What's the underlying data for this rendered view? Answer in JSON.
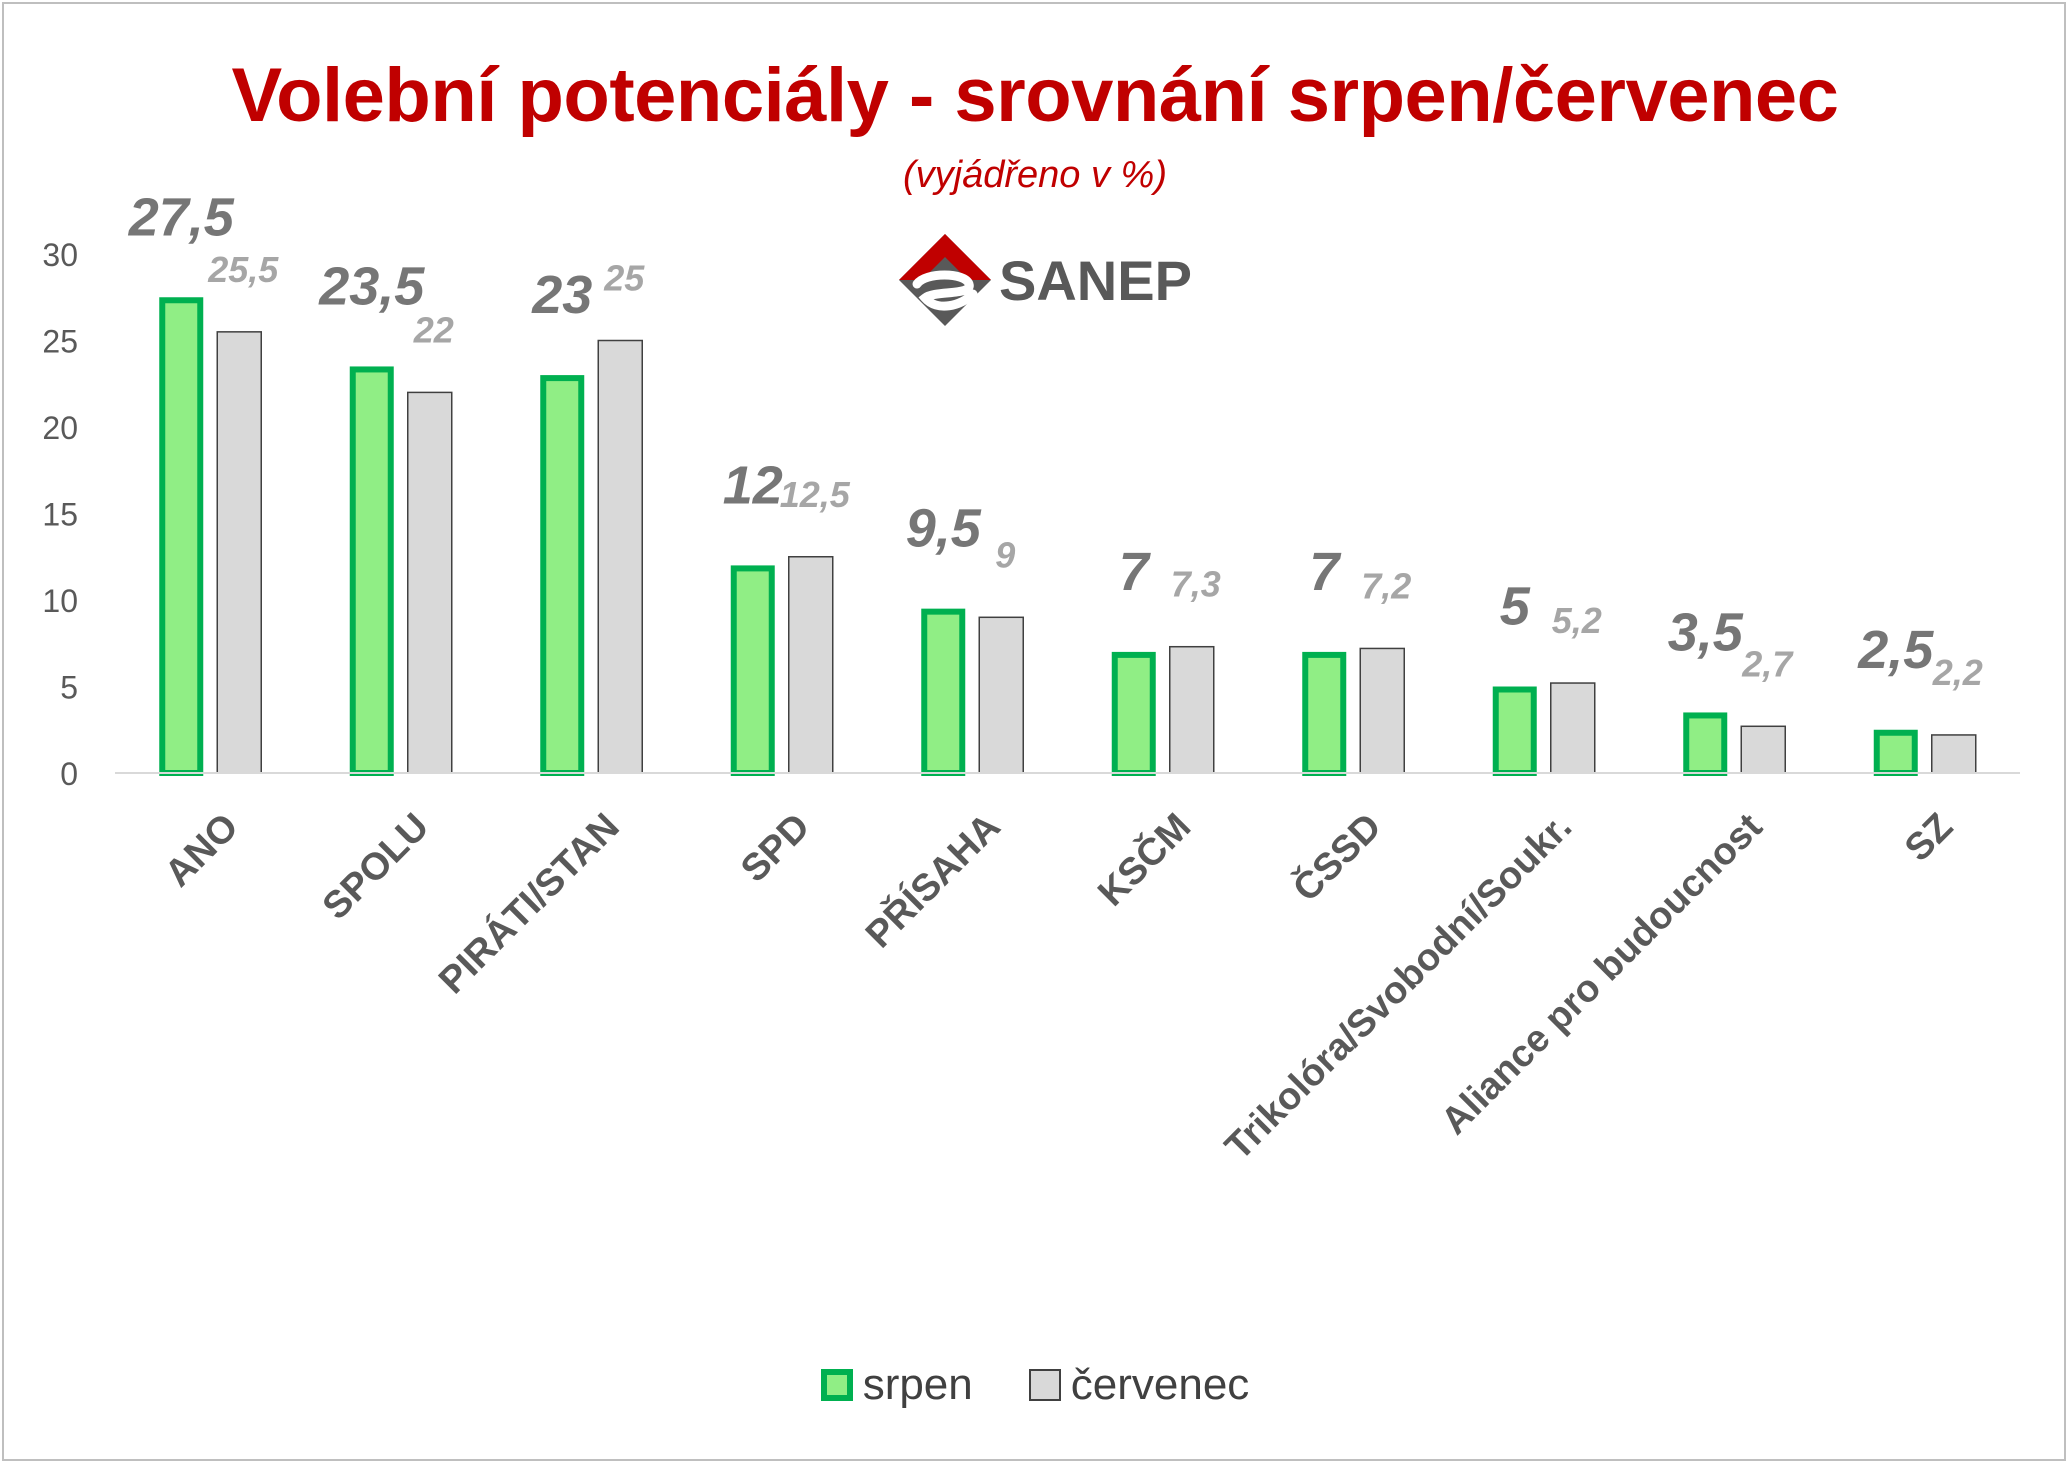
{
  "chart_data": {
    "type": "bar",
    "title": "Volební potenciály - srovnání srpen/červenec",
    "subtitle": "(vyjádřeno v %)",
    "categories": [
      "ANO",
      "SPOLU",
      "PIRÁTI/STAN",
      "SPD",
      "PŘÍSAHA",
      "KSČM",
      "ČSSD",
      "Trikolóra/Svobodní/Soukr.",
      "Aliance pro budoucnost",
      "SZ"
    ],
    "series": [
      {
        "name": "srpen",
        "values": [
          27.5,
          23.5,
          23,
          12,
          9.5,
          7,
          7,
          5,
          3.5,
          2.5
        ],
        "labels": [
          "27,5",
          "23,5",
          "23",
          "12",
          "9,5",
          "7",
          "7",
          "5",
          "3,5",
          "2,5"
        ],
        "fill": "#90ee85",
        "stroke": "#00b050"
      },
      {
        "name": "červenec",
        "values": [
          25.5,
          22,
          25,
          12.5,
          9,
          7.3,
          7.2,
          5.2,
          2.7,
          2.2
        ],
        "labels": [
          "25,5",
          "22",
          "25",
          "12,5",
          "9",
          "7,3",
          "7,2",
          "5,2",
          "2,7",
          "2,2"
        ],
        "fill": "#d9d9d9",
        "stroke": "#404040"
      }
    ],
    "yticks": [
      "0",
      "5",
      "10",
      "15",
      "20",
      "25",
      "30"
    ],
    "ylim": [
      0,
      30
    ],
    "grid": false,
    "legend_position": "bottom"
  },
  "logo": {
    "text": "SANEP",
    "color": "#c00000",
    "dark": "#595959"
  },
  "colors": {
    "title": "#c00000",
    "label_srpen": "#767676",
    "label_cervenec": "#a6a6a6",
    "axis_text": "#595959"
  }
}
